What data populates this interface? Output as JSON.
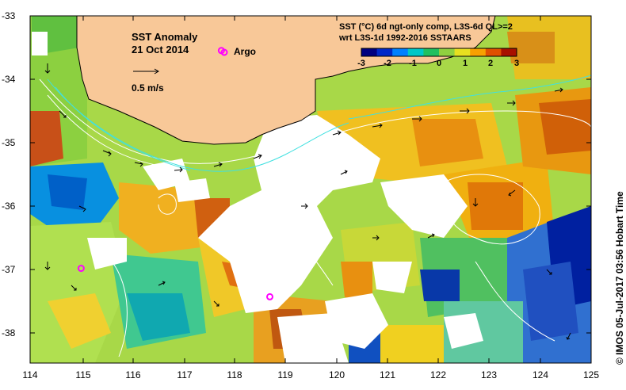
{
  "title": {
    "line1": "SST Anomaly",
    "line2": "21 Oct 2014"
  },
  "argo_label": "Argo",
  "vector_scale_label": "0.5 m/s",
  "colorbar": {
    "title_line1": "SST (°C) 6d ngt-only comp, L3S-6d QL>=2",
    "title_line2": "wrt L3S-1d 1992-2016 SSTAARS",
    "ticks": [
      "-3",
      "-2",
      "-1",
      "0",
      "1",
      "2",
      "3"
    ],
    "colors": [
      "#000080",
      "#0028c8",
      "#0080ff",
      "#00c8c8",
      "#20c060",
      "#90d040",
      "#e8e020",
      "#f8a000",
      "#e05000",
      "#a81000"
    ]
  },
  "y_ticks": [
    "-33",
    "-34",
    "-35",
    "-36",
    "-37",
    "-38"
  ],
  "x_ticks": [
    "114",
    "115",
    "116",
    "117",
    "118",
    "119",
    "120",
    "121",
    "122",
    "123",
    "124",
    "125"
  ],
  "credit": "© IMOS 05-Jul-2017 03:56 Hobart Time",
  "colors": {
    "land": "#f8c898",
    "argo_marker": "#ff00ff",
    "contour": "#ffffff",
    "coastal_contour": "#40e0e0"
  },
  "argo_floats": [
    {
      "lon": 117.75,
      "lat": -33.55
    },
    {
      "lon": 115.0,
      "lat": -37.0
    },
    {
      "lon": 118.7,
      "lat": -37.45
    }
  ]
}
